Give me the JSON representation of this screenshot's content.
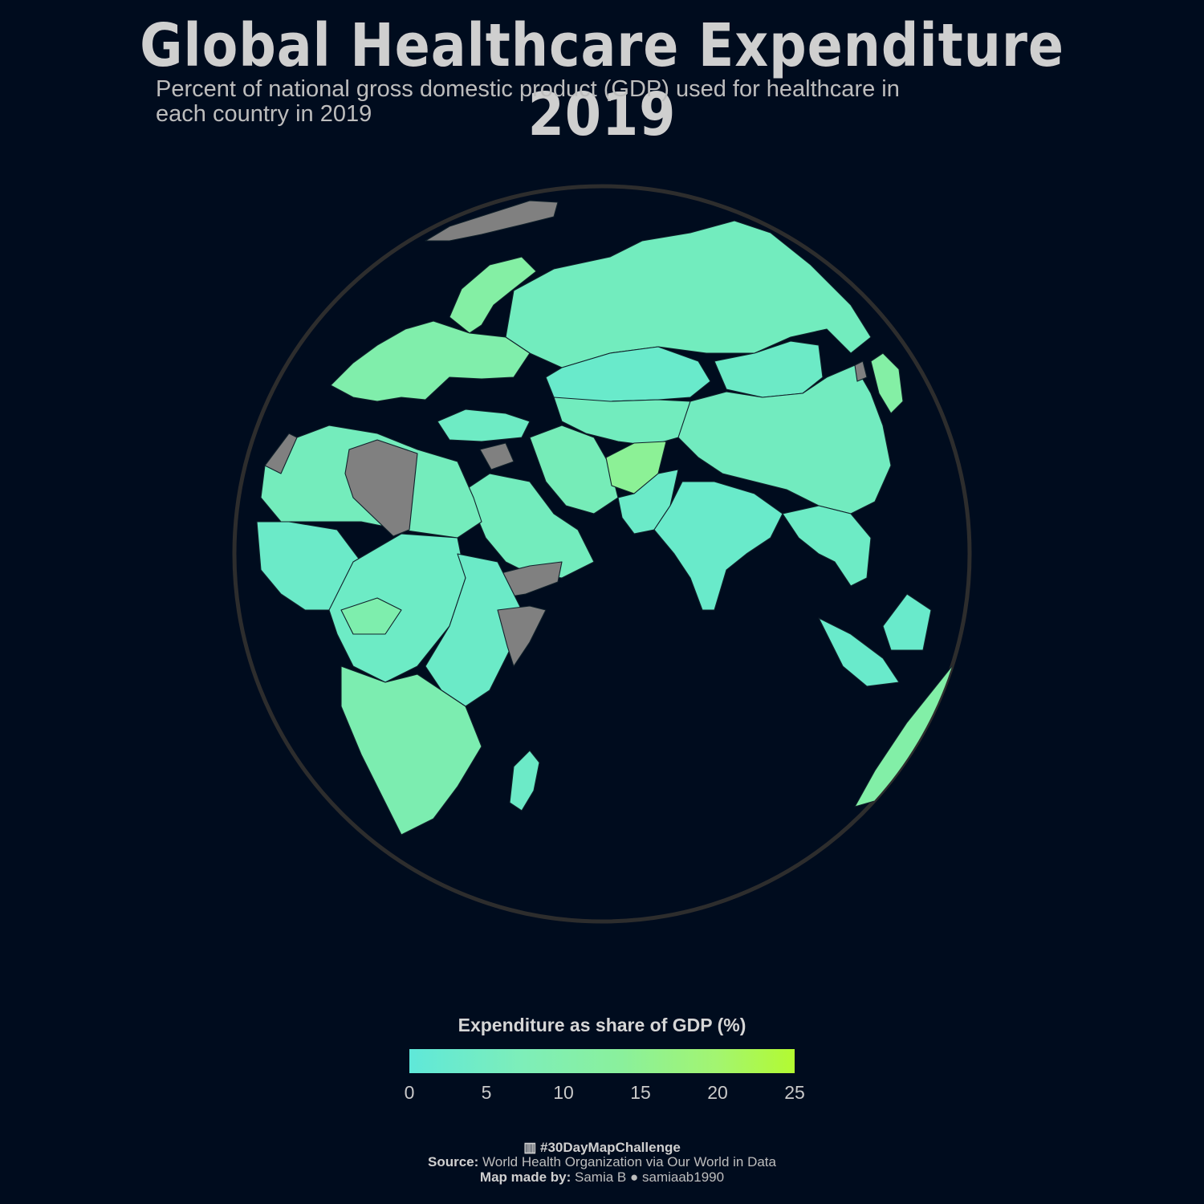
{
  "header": {
    "title": "Global Healthcare Expenditure 2019",
    "subtitle_line1": "Percent of national gross domestic product (GDP) used for healthcare in",
    "subtitle_line2": "each country in 2019"
  },
  "legend": {
    "title": "Expenditure as share of GDP (%)",
    "ticks": [
      "0",
      "5",
      "10",
      "15",
      "20",
      "25"
    ],
    "range": [
      0,
      25
    ],
    "colors": {
      "low": "#5fe8d9",
      "mid": "#8af09c",
      "high": "#b3fa31",
      "no_data": "#808080"
    }
  },
  "map": {
    "projection": "orthographic",
    "ocean_color": "#000c1e",
    "outline_color": "#2d2d2d",
    "regions": [
      {
        "id": "europe",
        "value": 9.5
      },
      {
        "id": "russia",
        "value": 5.6
      },
      {
        "id": "kazakhstan",
        "value": 2.8
      },
      {
        "id": "mongolia",
        "value": 3.8
      },
      {
        "id": "china",
        "value": 5.4
      },
      {
        "id": "central-asia",
        "value": 5.5
      },
      {
        "id": "iran",
        "value": 6.7
      },
      {
        "id": "afghanistan",
        "value": 13.2
      },
      {
        "id": "pakistan",
        "value": 3.4
      },
      {
        "id": "india",
        "value": 3.0
      },
      {
        "id": "southeast-asia",
        "value": 4.1
      },
      {
        "id": "indonesia",
        "value": 2.9
      },
      {
        "id": "arabia",
        "value": 5.7
      },
      {
        "id": "turkey",
        "value": 4.3
      },
      {
        "id": "north-africa",
        "value": 6.0
      },
      {
        "id": "west-africa",
        "value": 3.5
      },
      {
        "id": "central-africa",
        "value": 4.0
      },
      {
        "id": "east-africa",
        "value": 3.6
      },
      {
        "id": "southern-africa",
        "value": 8.3
      },
      {
        "id": "madagascar",
        "value": 3.7
      },
      {
        "id": "japan",
        "value": 10.7
      },
      {
        "id": "australia",
        "value": 10.2
      },
      {
        "id": "scandinavia",
        "value": 10.8
      },
      {
        "id": "mid-africa-band",
        "value": 9.0
      }
    ],
    "no_data_regions": [
      "greenland-svalbard",
      "libya",
      "western-sahara",
      "syria",
      "yemen",
      "somalia",
      "north-korea"
    ]
  },
  "footer": {
    "hashtag": "#30DayMapChallenge",
    "source_label": "Source:",
    "source_text": "World Health Organization via Our World in Data",
    "author_label": "Map made by:",
    "author_name": "Samia B",
    "github_handle": "samiaab1990"
  }
}
